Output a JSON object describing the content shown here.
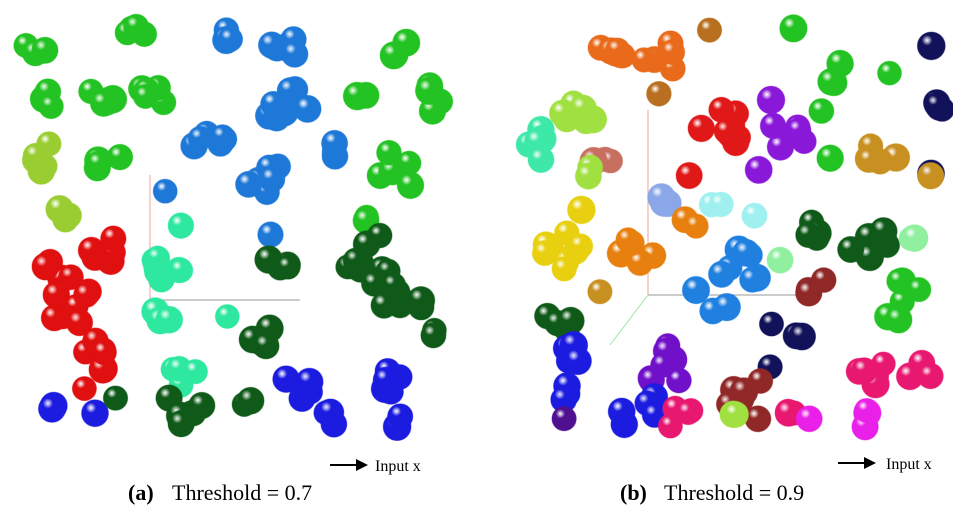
{
  "panels": [
    {
      "label": "(a)",
      "caption": "Threshold = 0.7",
      "axis_label": "Input x"
    },
    {
      "label": "(b)",
      "caption": "Threshold = 0.9",
      "axis_label": "Input x"
    }
  ]
}
